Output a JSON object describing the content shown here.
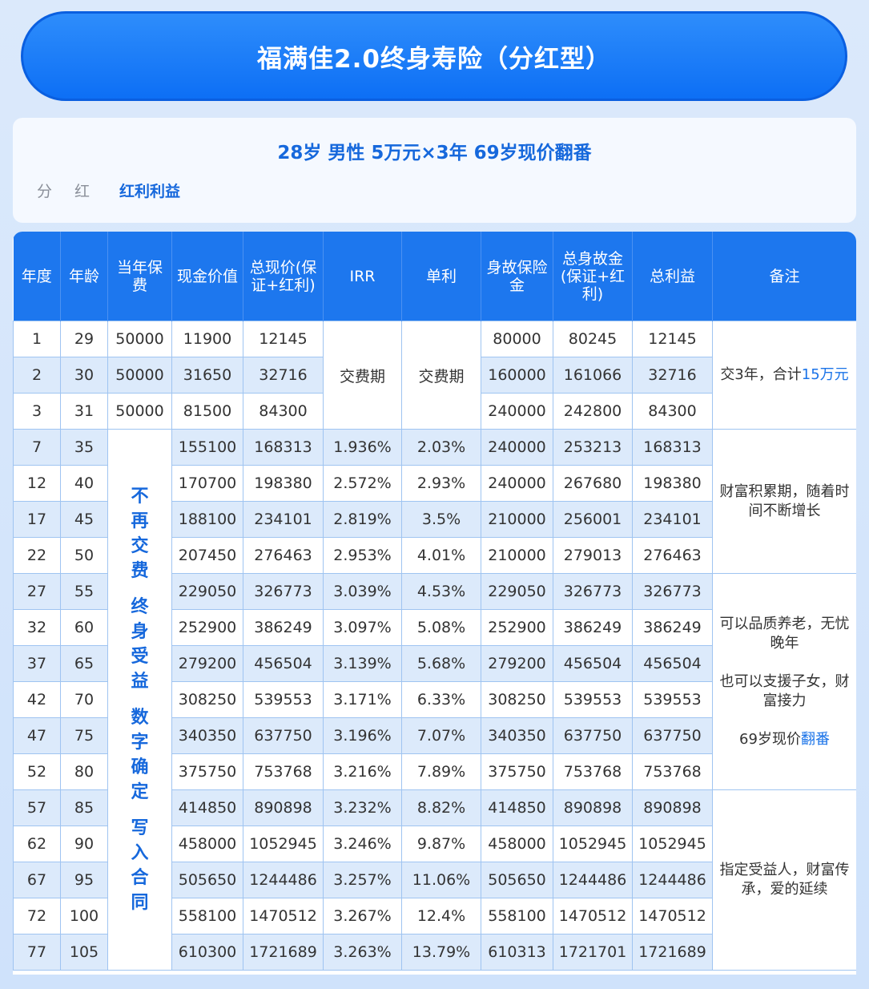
{
  "title": "福满佳2.0终身寿险（分红型）",
  "subtitle": "28岁 男性 5万元×3年 69岁现价翻番",
  "dividend": {
    "label": "分红",
    "value": "红利利益"
  },
  "table": {
    "headers": [
      "年度",
      "年龄",
      "当年保费",
      "现金价值",
      "总现价(保证+红利)",
      "IRR",
      "单利",
      "身故保险金",
      "总身故金(保证+红利)",
      "总利益",
      "备注"
    ],
    "payment_period_label": "交费期",
    "vertical_note": [
      "不再交费",
      "终身受益",
      "数字确定",
      "写入合同"
    ],
    "rows": [
      [
        "1",
        "29",
        "50000",
        "11900",
        "12145",
        "",
        "",
        "80000",
        "80245",
        "12145"
      ],
      [
        "2",
        "30",
        "50000",
        "31650",
        "32716",
        "",
        "",
        "160000",
        "161066",
        "32716"
      ],
      [
        "3",
        "31",
        "50000",
        "81500",
        "84300",
        "",
        "",
        "240000",
        "242800",
        "84300"
      ],
      [
        "7",
        "35",
        "",
        "155100",
        "168313",
        "1.936%",
        "2.03%",
        "240000",
        "253213",
        "168313"
      ],
      [
        "12",
        "40",
        "",
        "170700",
        "198380",
        "2.572%",
        "2.93%",
        "240000",
        "267680",
        "198380"
      ],
      [
        "17",
        "45",
        "",
        "188100",
        "234101",
        "2.819%",
        "3.5%",
        "210000",
        "256001",
        "234101"
      ],
      [
        "22",
        "50",
        "",
        "207450",
        "276463",
        "2.953%",
        "4.01%",
        "210000",
        "279013",
        "276463"
      ],
      [
        "27",
        "55",
        "",
        "229050",
        "326773",
        "3.039%",
        "4.53%",
        "229050",
        "326773",
        "326773"
      ],
      [
        "32",
        "60",
        "",
        "252900",
        "386249",
        "3.097%",
        "5.08%",
        "252900",
        "386249",
        "386249"
      ],
      [
        "37",
        "65",
        "",
        "279200",
        "456504",
        "3.139%",
        "5.68%",
        "279200",
        "456504",
        "456504"
      ],
      [
        "42",
        "70",
        "",
        "308250",
        "539553",
        "3.171%",
        "6.33%",
        "308250",
        "539553",
        "539553"
      ],
      [
        "47",
        "75",
        "",
        "340350",
        "637750",
        "3.196%",
        "7.07%",
        "340350",
        "637750",
        "637750"
      ],
      [
        "52",
        "80",
        "",
        "375750",
        "753768",
        "3.216%",
        "7.89%",
        "375750",
        "753768",
        "753768"
      ],
      [
        "57",
        "85",
        "",
        "414850",
        "890898",
        "3.232%",
        "8.82%",
        "414850",
        "890898",
        "890898"
      ],
      [
        "62",
        "90",
        "",
        "458000",
        "1052945",
        "3.246%",
        "9.87%",
        "458000",
        "1052945",
        "1052945"
      ],
      [
        "67",
        "95",
        "",
        "505650",
        "1244486",
        "3.257%",
        "11.06%",
        "505650",
        "1244486",
        "1244486"
      ],
      [
        "72",
        "100",
        "",
        "558100",
        "1470512",
        "3.267%",
        "12.4%",
        "558100",
        "1470512",
        "1470512"
      ],
      [
        "77",
        "105",
        "",
        "610300",
        "1721689",
        "3.263%",
        "13.79%",
        "610313",
        "1721701",
        "1721689"
      ]
    ],
    "notes": {
      "n1_a": "交3年，合计",
      "n1_b": "15万元",
      "n2": "财富积累期，随着时间不断增长",
      "n3_a": "可以品质养老，无忧晚年",
      "n3_b": "也可以支援子女，财富接力",
      "n3_c1": "69岁现价",
      "n3_c2": "翻番",
      "n4": "指定受益人，财富传承，爱的延续"
    }
  },
  "colors": {
    "accent": "#1d77ee",
    "stripe": "#dceafb",
    "text": "#333333"
  }
}
